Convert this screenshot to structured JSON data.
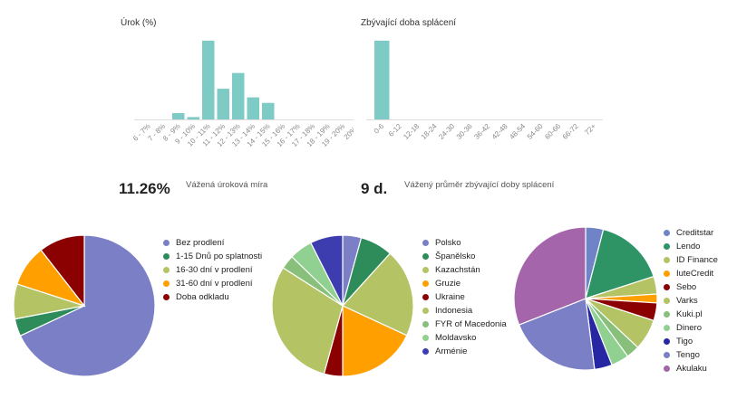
{
  "chart_data": [
    {
      "type": "bar",
      "title": "Úrok (%)",
      "categories": [
        "6 - 7%",
        "7 - 8%",
        "8 - 9%",
        "9 - 10%",
        "10 - 11%",
        "11 - 12%",
        "12 - 13%",
        "13 - 14%",
        "14 - 15%",
        "15 - 16%",
        "16 - 17%",
        "17 - 18%",
        "18 - 19%",
        "19 - 20%",
        "20%+"
      ],
      "values": [
        0,
        0,
        8,
        3,
        100,
        39,
        59,
        28,
        21,
        0,
        0,
        0,
        0,
        0,
        0
      ],
      "ylim": [
        0,
        100
      ],
      "color": "#7ecbc6"
    },
    {
      "type": "bar",
      "title": "Zbývající doba splácení",
      "categories": [
        "0-6",
        "6-12",
        "12-18",
        "18-24",
        "24-30",
        "30-36",
        "36-42",
        "42-48",
        "48-54",
        "54-60",
        "60-66",
        "66-72",
        "72+"
      ],
      "values": [
        100,
        0,
        0,
        0,
        0,
        0,
        0,
        0,
        0,
        0,
        0,
        0,
        0
      ],
      "ylim": [
        0,
        100
      ],
      "color": "#7ecbc6"
    },
    {
      "type": "pie",
      "labels": [
        "Bez prodlení",
        "1-15 Dnů po splatnosti",
        "16-30 dní v prodlení",
        "31-60 dní v prodlení",
        "Doba odkladu"
      ],
      "values": [
        68,
        4,
        8,
        9.5,
        10.5
      ],
      "colors": [
        "#7a7fc6",
        "#2e8b5a",
        "#b4c464",
        "#ffa000",
        "#8b0000"
      ]
    },
    {
      "type": "pie",
      "labels": [
        "Polsko",
        "Španělsko",
        "Kazachstán",
        "Gruzie",
        "Ukraine",
        "Indonesia",
        "FYR of Macedonia",
        "Moldavsko",
        "Arménie"
      ],
      "values": [
        4,
        7,
        19,
        17,
        4,
        28,
        3,
        5,
        7
      ],
      "colors": [
        "#7a7fc6",
        "#2e8b5a",
        "#b4c464",
        "#ffa000",
        "#8b0000",
        "#b4c464",
        "#88bf7a",
        "#90d090",
        "#3d3db0"
      ]
    },
    {
      "type": "pie",
      "labels": [
        "Creditstar",
        "Lendo",
        "ID Finance",
        "IuteCredit",
        "Sebo",
        "Varks",
        "Kuki.pl",
        "Dinero",
        "Tigo",
        "Tengo",
        "Akulaku"
      ],
      "values": [
        4,
        16,
        4,
        2,
        4,
        7,
        3,
        4,
        4,
        21,
        31
      ],
      "colors": [
        "#6f84c6",
        "#2e9466",
        "#b4c464",
        "#ffa000",
        "#8b0000",
        "#b4c464",
        "#88bf7a",
        "#90d090",
        "#2727a3",
        "#7a7fc6",
        "#a465aa"
      ]
    }
  ],
  "stats": {
    "rate_value": "11.26%",
    "rate_label": "Vážená úroková míra",
    "term_value": "9 d.",
    "term_label": "Vážený průměr zbývající doby splácení"
  }
}
